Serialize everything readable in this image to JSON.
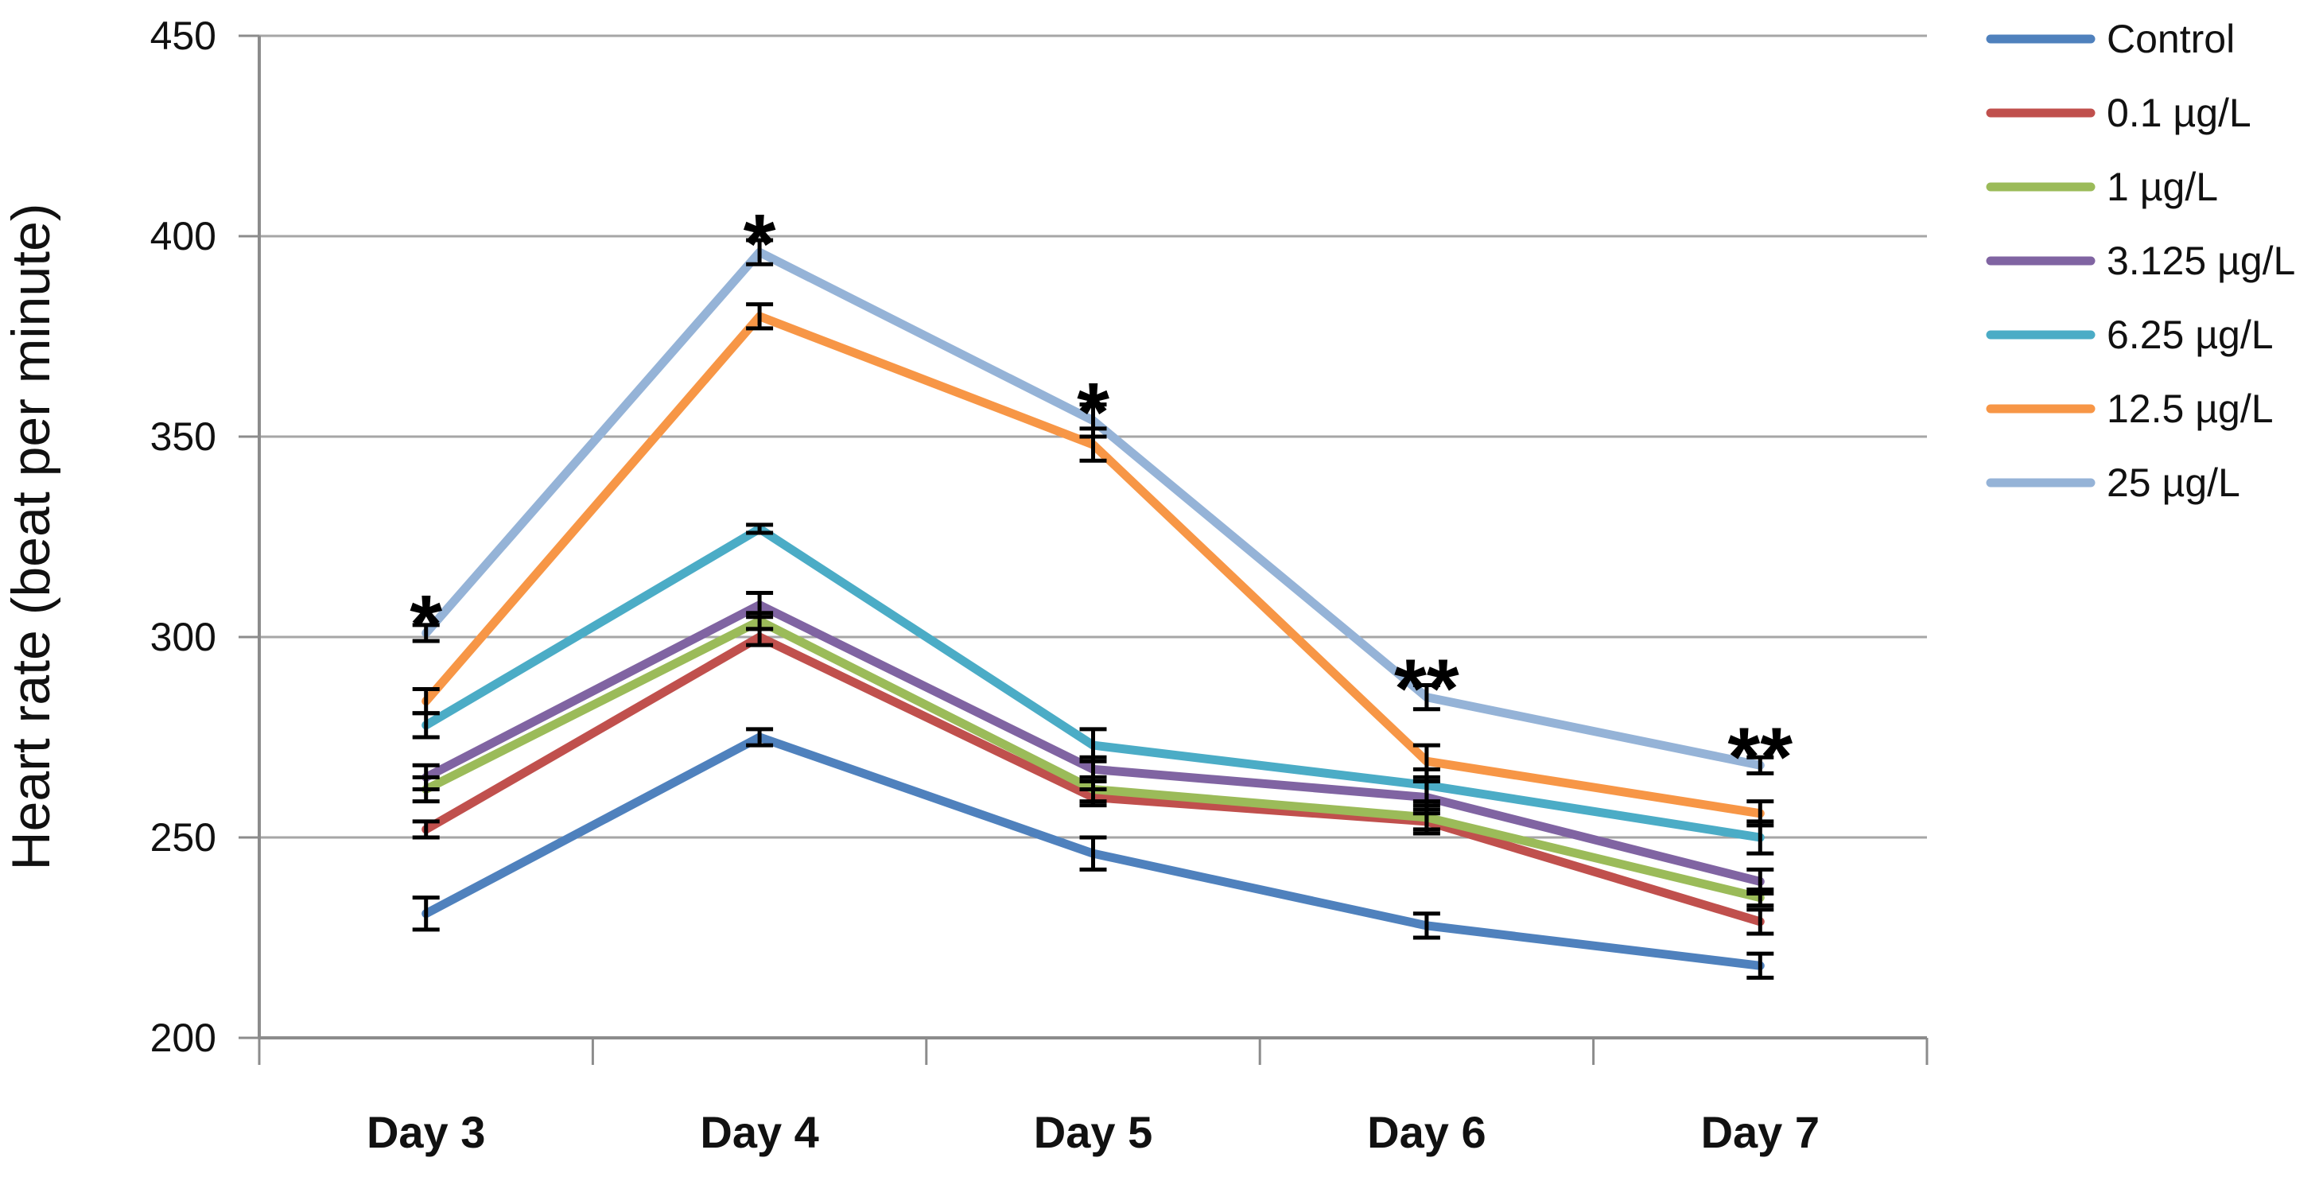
{
  "chart_data": {
    "type": "line",
    "title": "",
    "xlabel": "",
    "ylabel": "Heart rate (beat per minute)",
    "ylim": [
      200,
      450
    ],
    "ytick_step": 50,
    "y_ticks": [
      200,
      250,
      300,
      350,
      400,
      450
    ],
    "grid": true,
    "legend_position": "right",
    "categories": [
      "Day 3",
      "Day 4",
      "Day 5",
      "Day 6",
      "Day 7"
    ],
    "series": [
      {
        "name": "Control",
        "color": "#4F81BD",
        "values": [
          231,
          275,
          246,
          228,
          218
        ],
        "error": [
          4,
          2,
          4,
          3,
          3
        ]
      },
      {
        "name": "0.1 µg/L",
        "color": "#C0504D",
        "values": [
          252,
          300,
          260,
          254,
          229
        ],
        "error": [
          2,
          2,
          2,
          3,
          3
        ]
      },
      {
        "name": "1 µg/L",
        "color": "#9BBB59",
        "values": [
          262,
          304,
          262,
          255,
          235
        ],
        "error": [
          3,
          2,
          3,
          3,
          2
        ]
      },
      {
        "name": "3.125 µg/L",
        "color": "#8064A2",
        "values": [
          265,
          308,
          267,
          260,
          239
        ],
        "error": [
          3,
          3,
          3,
          4,
          3
        ]
      },
      {
        "name": "6.25 µg/L",
        "color": "#4BACC6",
        "values": [
          278,
          327,
          273,
          263,
          250
        ],
        "error": [
          3,
          1,
          4,
          4,
          4
        ]
      },
      {
        "name": "12.5 µg/L",
        "color": "#F79646",
        "values": [
          284,
          380,
          348,
          269,
          256
        ],
        "error": [
          3,
          3,
          4,
          4,
          3
        ]
      },
      {
        "name": "25 µg/L",
        "color": "#95B3D7",
        "values": [
          301,
          396,
          354,
          285,
          268
        ],
        "error": [
          2,
          3,
          4,
          3,
          2
        ]
      }
    ],
    "annotations": [
      {
        "category": "Day 3",
        "text": "*",
        "above_series": "25 µg/L"
      },
      {
        "category": "Day 4",
        "text": "*",
        "above_series": "25 µg/L"
      },
      {
        "category": "Day 5",
        "text": "*",
        "above_series": "25 µg/L"
      },
      {
        "category": "Day 6",
        "text": "**",
        "above_series": "25 µg/L"
      },
      {
        "category": "Day 7",
        "text": "**",
        "above_series": "25 µg/L"
      }
    ],
    "grid_color": "#A6A6A6",
    "axis_color": "#8C8C8C",
    "error_bar_color": "#000000"
  }
}
